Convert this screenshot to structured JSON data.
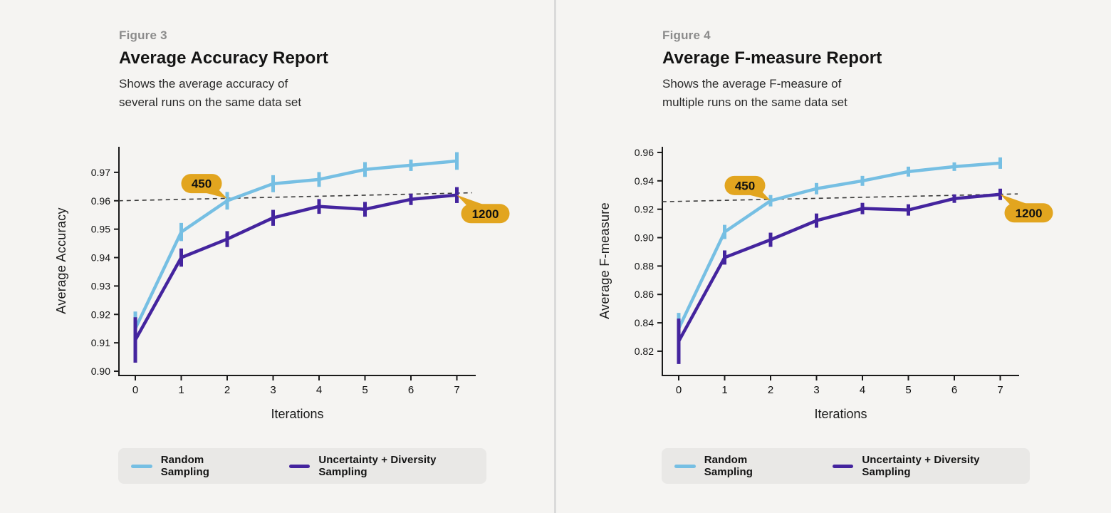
{
  "page": {
    "background": "#f5f4f2",
    "divider_color": "#dadada"
  },
  "colors": {
    "blue": "#76bfe3",
    "purple": "#44249e",
    "badge": "#e2a51f",
    "badge_text": "#171717",
    "axis": "#1a1a1a",
    "dashed": "#3a3a3a",
    "legend_bg": "#e9e8e6",
    "figure_label": "#8b8b8b",
    "title": "#141414",
    "subtitle": "#2a2a2a"
  },
  "chart_data": [
    {
      "type": "line",
      "figure_label": "Figure 3",
      "title": "Average Accuracy Report",
      "subtitle_lines": [
        "Shows the average accuracy of",
        "several runs on the same data set"
      ],
      "xlabel": "Iterations",
      "ylabel": "Average Accuracy",
      "x": [
        0,
        1,
        2,
        3,
        4,
        5,
        6,
        7
      ],
      "ylim": [
        0.8985,
        0.979
      ],
      "yticks": [
        0.9,
        0.91,
        0.92,
        0.93,
        0.94,
        0.95,
        0.96,
        0.97
      ],
      "ytick_labels": [
        "0.90",
        "0.91",
        "0.92",
        "0.93",
        "0.94",
        "0.95",
        "0.96",
        "0.97"
      ],
      "grid": false,
      "legend_position": "bottom",
      "series": [
        {
          "name": "Random Sampling",
          "color": "#76bfe3",
          "values": [
            0.915,
            0.949,
            0.96,
            0.966,
            0.9675,
            0.971,
            0.9725,
            0.974
          ],
          "errors": [
            0.006,
            0.0032,
            0.0031,
            0.003,
            0.0026,
            0.0026,
            0.002,
            0.0031
          ]
        },
        {
          "name": "Uncertainty + Diversity Sampling",
          "color": "#44249e",
          "values": [
            0.911,
            0.94,
            0.9465,
            0.954,
            0.958,
            0.957,
            0.9605,
            0.962
          ],
          "errors": [
            0.008,
            0.0032,
            0.0028,
            0.0028,
            0.0026,
            0.0026,
            0.002,
            0.0028
          ]
        }
      ],
      "reference_line": {
        "style": "dashed",
        "x1": -0.36,
        "y1": 0.96,
        "x2": 7.33,
        "y2": 0.9628
      },
      "annotations": [
        {
          "text": "450",
          "anchor_x": 2,
          "anchor_y": 0.9608,
          "offset": [
            -36,
            -21
          ]
        },
        {
          "text": "1200",
          "anchor_x": 7,
          "anchor_y": 0.962,
          "offset": [
            40,
            26
          ]
        }
      ]
    },
    {
      "type": "line",
      "figure_label": "Figure 4",
      "title": "Average F-measure Report",
      "subtitle_lines": [
        "Shows the average F-measure of",
        "multiple runs on the same data set"
      ],
      "xlabel": "Iterations",
      "ylabel": "Average F-measure",
      "x": [
        0,
        1,
        2,
        3,
        4,
        5,
        6,
        7
      ],
      "ylim": [
        0.8029,
        0.964
      ],
      "yticks": [
        0.82,
        0.84,
        0.86,
        0.88,
        0.9,
        0.92,
        0.94,
        0.96
      ],
      "ytick_labels": [
        "0.82",
        "0.84",
        "0.86",
        "0.88",
        "0.90",
        "0.92",
        "0.94",
        "0.96"
      ],
      "grid": false,
      "legend_position": "bottom",
      "series": [
        {
          "name": "Random Sampling",
          "color": "#76bfe3",
          "values": [
            0.836,
            0.904,
            0.926,
            0.9345,
            0.94,
            0.9465,
            0.95,
            0.9525
          ],
          "errors": [
            0.011,
            0.005,
            0.004,
            0.004,
            0.0035,
            0.0035,
            0.003,
            0.004
          ]
        },
        {
          "name": "Uncertainty + Diversity Sampling",
          "color": "#44249e",
          "values": [
            0.827,
            0.886,
            0.8985,
            0.912,
            0.9205,
            0.9195,
            0.9275,
            0.9305
          ],
          "errors": [
            0.016,
            0.005,
            0.005,
            0.005,
            0.004,
            0.004,
            0.003,
            0.004
          ]
        }
      ],
      "reference_line": {
        "style": "dashed",
        "x1": -0.36,
        "y1": 0.9253,
        "x2": 7.38,
        "y2": 0.9308
      },
      "annotations": [
        {
          "text": "450",
          "anchor_x": 2,
          "anchor_y": 0.9262,
          "offset": [
            -36,
            -21
          ]
        },
        {
          "text": "1200",
          "anchor_x": 7,
          "anchor_y": 0.9305,
          "offset": [
            40,
            26
          ]
        }
      ]
    }
  ]
}
